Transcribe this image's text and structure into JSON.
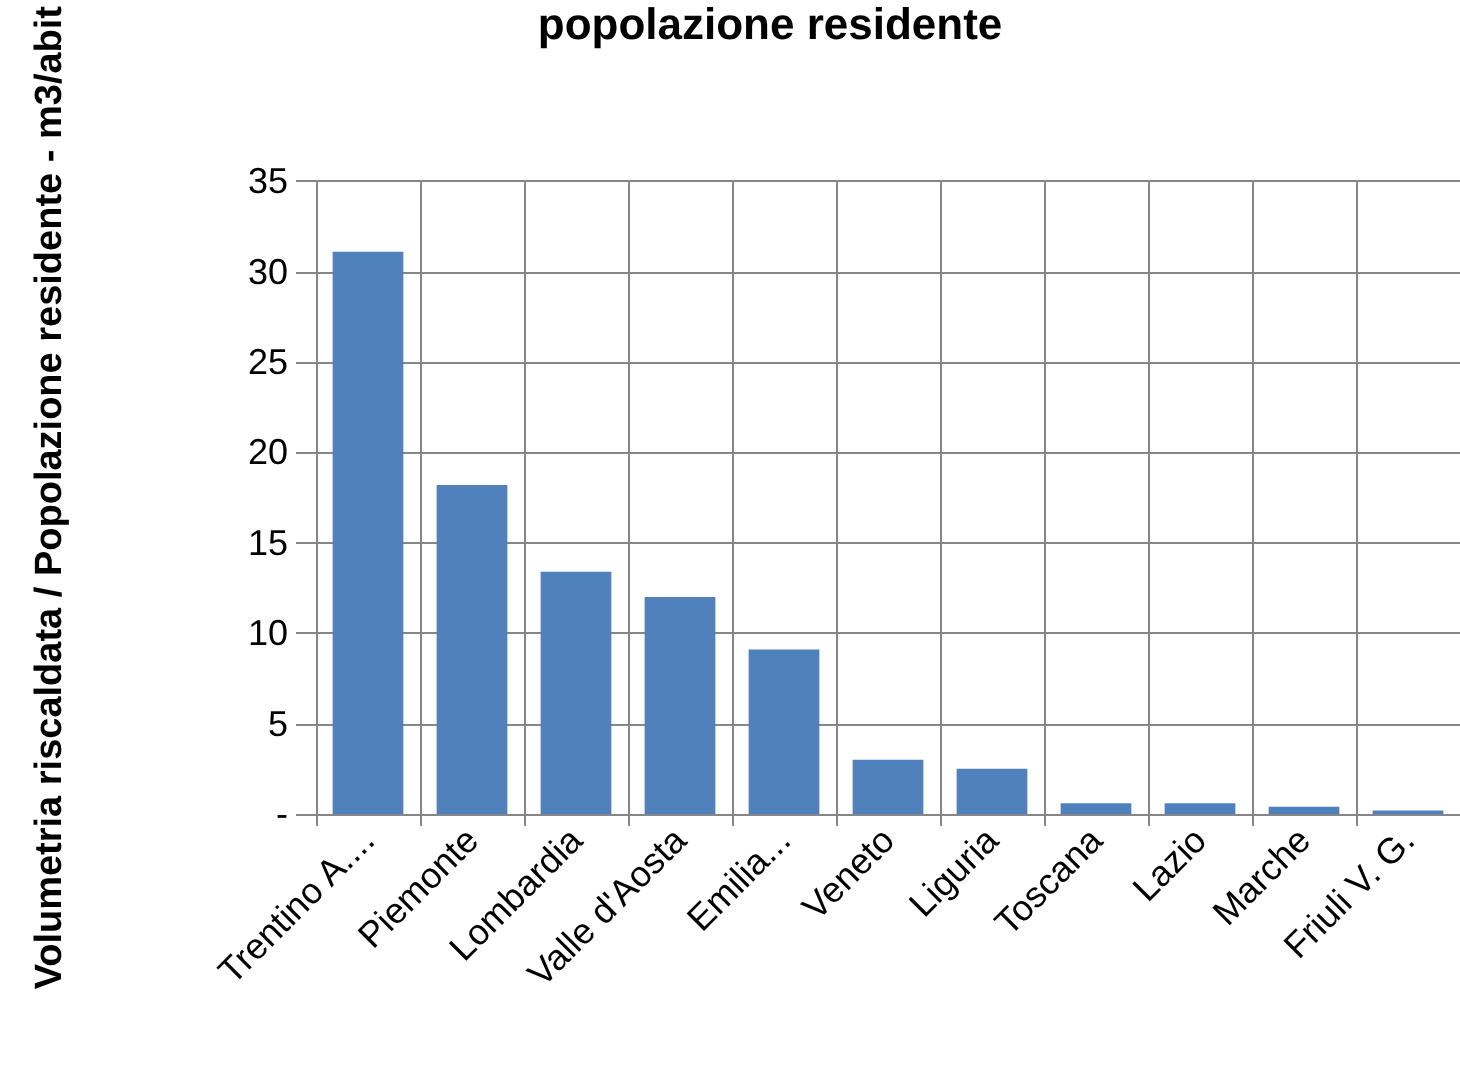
{
  "chart_data": {
    "type": "bar",
    "title": "popolazione residente",
    "ylabel": "Volumetria riscaldata / Popolazione residente - m3/abit",
    "categories": [
      "Trentino A....",
      "Piemonte",
      "Lombardia",
      "Valle d'Aosta",
      "Emilia...",
      "Veneto",
      "Liguria",
      "Toscana",
      "Lazio",
      "Marche",
      "Friuli V. G."
    ],
    "values": [
      31.1,
      18.2,
      13.4,
      12.0,
      9.1,
      3.0,
      2.5,
      0.6,
      0.6,
      0.4,
      0.2
    ],
    "color": "#4f81bd",
    "ylim": [
      0,
      35
    ],
    "yticks": [
      {
        "value": 0,
        "label": "-"
      },
      5,
      10,
      15,
      20,
      25,
      30,
      35
    ],
    "grid": true
  }
}
